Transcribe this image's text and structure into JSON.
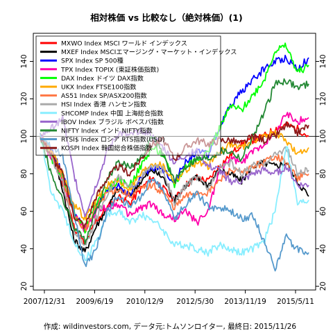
{
  "chart_data": {
    "type": "line",
    "title": "相対株価 vs 比較なし（絶対株価）(1)",
    "footer": "作成: wildinvestors.com, データ元:トムソンロイター, 最終日: 2015/11/26",
    "xlabel": "",
    "ylabel": "",
    "x_ticks": [
      "2007/12/31",
      "2009/6/19",
      "2010/12/9",
      "2012/5/30",
      "2013/11/19",
      "2015/5/11"
    ],
    "ylim": [
      18,
      155
    ],
    "y_ticks": [
      20,
      40,
      60,
      80,
      100,
      120,
      140
    ],
    "legend_position": "top-left",
    "series": [
      {
        "name": "MXWO Index MSCI ワールド インデックス",
        "color": "#ff0000",
        "values": [
          100,
          92,
          75,
          52,
          42,
          55,
          62,
          68,
          64,
          72,
          78,
          72,
          66,
          74,
          78,
          76,
          84,
          90,
          96,
          98,
          100,
          104,
          106,
          104,
          100
        ]
      },
      {
        "name": "MXEF Index MSCIエマージング・マーケット・インデックス",
        "color": "#000000",
        "values": [
          100,
          92,
          72,
          45,
          38,
          52,
          62,
          72,
          68,
          76,
          82,
          78,
          66,
          74,
          78,
          74,
          82,
          80,
          76,
          84,
          86,
          84,
          86,
          76,
          68
        ]
      },
      {
        "name": "SPX Index SP 500種",
        "color": "#0000ff",
        "values": [
          100,
          92,
          80,
          60,
          50,
          62,
          70,
          74,
          68,
          78,
          84,
          82,
          76,
          86,
          92,
          90,
          104,
          116,
          124,
          130,
          136,
          140,
          142,
          136,
          142
        ]
      },
      {
        "name": "TPX Index TOPIX (東証株価指数)",
        "color": "#ff00aa",
        "values": [
          100,
          88,
          76,
          60,
          50,
          60,
          62,
          64,
          58,
          62,
          64,
          58,
          56,
          60,
          54,
          60,
          82,
          88,
          86,
          92,
          96,
          102,
          112,
          108,
          110
        ]
      },
      {
        "name": "DAX Index ドイツ DAX指数",
        "color": "#00ff00",
        "values": [
          100,
          88,
          78,
          60,
          50,
          64,
          72,
          76,
          74,
          84,
          94,
          90,
          74,
          84,
          88,
          92,
          104,
          116,
          114,
          122,
          130,
          146,
          148,
          134,
          138
        ]
      },
      {
        "name": "UKX Index FTSE100指数",
        "color": "#ffaa00",
        "values": [
          100,
          92,
          80,
          64,
          56,
          66,
          74,
          76,
          72,
          80,
          86,
          84,
          76,
          82,
          86,
          84,
          92,
          96,
          94,
          98,
          100,
          102,
          98,
          90,
          94
        ]
      },
      {
        "name": "AS51 Index SP/ASX200指数",
        "color": "#ff7744",
        "values": [
          100,
          92,
          76,
          58,
          50,
          62,
          70,
          72,
          68,
          72,
          74,
          70,
          62,
          68,
          70,
          70,
          76,
          82,
          80,
          84,
          86,
          90,
          86,
          78,
          80
        ]
      },
      {
        "name": "HSI Index 香港 ハンセン指数",
        "color": "#aaaaaa",
        "values": [
          100,
          88,
          76,
          50,
          42,
          56,
          70,
          78,
          72,
          78,
          84,
          82,
          64,
          74,
          78,
          72,
          84,
          86,
          80,
          84,
          86,
          90,
          94,
          80,
          82
        ]
      },
      {
        "name": "SHCOMP Index 中国 上海総合指数",
        "color": "#88eeff",
        "values": [
          100,
          70,
          60,
          45,
          34,
          44,
          58,
          60,
          54,
          58,
          56,
          50,
          42,
          42,
          40,
          38,
          42,
          40,
          38,
          40,
          44,
          60,
          96,
          64,
          66
        ]
      },
      {
        "name": "IBOV Index ブラジル ボベスパ指数",
        "color": "#9966cc",
        "values": [
          100,
          104,
          110,
          80,
          58,
          74,
          92,
          102,
          100,
          104,
          100,
          94,
          86,
          90,
          92,
          84,
          82,
          76,
          76,
          80,
          82,
          80,
          84,
          74,
          74
        ]
      },
      {
        "name": "NIFTY Index インド NIFTY指数",
        "color": "#228833",
        "values": [
          100,
          80,
          66,
          52,
          44,
          60,
          78,
          86,
          84,
          88,
          100,
          90,
          76,
          84,
          88,
          88,
          92,
          92,
          88,
          100,
          112,
          128,
          130,
          126,
          128
        ]
      },
      {
        "name": "RTSI$ Index ロシア RTS指数(USD)",
        "color": "#5599cc",
        "values": [
          100,
          95,
          90,
          60,
          30,
          40,
          60,
          68,
          62,
          68,
          78,
          72,
          56,
          64,
          70,
          62,
          62,
          60,
          56,
          58,
          44,
          30,
          46,
          40,
          38
        ]
      },
      {
        "name": "KOSPI Index 韓国総合株価指数",
        "color": "#8b1a1a",
        "values": [
          100,
          90,
          80,
          58,
          52,
          68,
          78,
          84,
          80,
          88,
          96,
          98,
          88,
          94,
          98,
          96,
          98,
          98,
          96,
          100,
          98,
          100,
          106,
          102,
          106
        ]
      }
    ]
  }
}
